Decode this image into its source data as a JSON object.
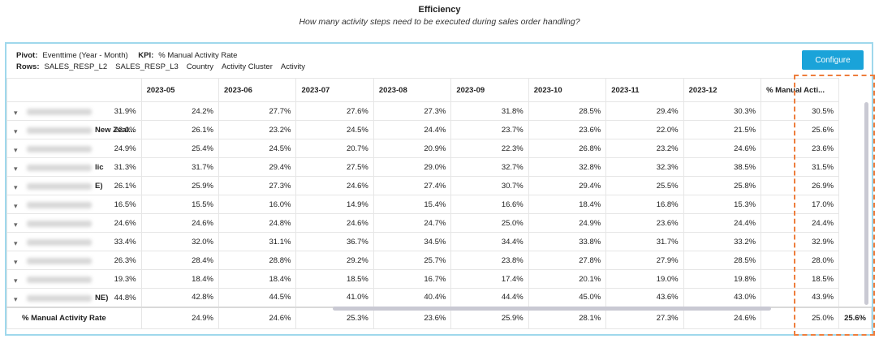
{
  "title": "Efficiency",
  "subtitle": "How many activity steps need to be executed during sales order handling?",
  "pivot": {
    "pivot_label": "Pivot:",
    "pivot_value": "Eventtime (Year - Month)",
    "kpi_label": "KPI:",
    "kpi_value": "% Manual Activity Rate",
    "rows_label": "Rows:",
    "rows_values": [
      "SALES_RESP_L2",
      "SALES_RESP_L3",
      "Country",
      "Activity Cluster",
      "Activity"
    ]
  },
  "configure_label": "Configure",
  "columns": [
    "",
    "2023-05",
    "2023-06",
    "2023-07",
    "2023-08",
    "2023-09",
    "2023-10",
    "2023-11",
    "2023-12",
    "% Manual Acti..."
  ],
  "rows": [
    {
      "label": "",
      "first": "31.9%",
      "values": [
        "24.2%",
        "27.7%",
        "27.6%",
        "27.3%",
        "31.8%",
        "28.5%",
        "29.4%",
        "30.3%",
        "30.5%"
      ]
    },
    {
      "label": "New Zeal...",
      "first": "22.0%",
      "values": [
        "26.1%",
        "23.2%",
        "24.5%",
        "24.4%",
        "23.7%",
        "23.6%",
        "22.0%",
        "21.5%",
        "25.6%"
      ]
    },
    {
      "label": "",
      "first": "24.9%",
      "values": [
        "25.4%",
        "24.5%",
        "20.7%",
        "20.9%",
        "22.3%",
        "26.8%",
        "23.2%",
        "24.6%",
        "23.6%"
      ]
    },
    {
      "label": "lic",
      "first": "31.3%",
      "values": [
        "31.7%",
        "29.4%",
        "27.5%",
        "29.0%",
        "32.7%",
        "32.8%",
        "32.3%",
        "38.5%",
        "31.5%"
      ]
    },
    {
      "label": "E)",
      "first": "26.1%",
      "values": [
        "25.9%",
        "27.3%",
        "24.6%",
        "27.4%",
        "30.7%",
        "29.4%",
        "25.5%",
        "25.8%",
        "26.9%"
      ]
    },
    {
      "label": "",
      "first": "16.5%",
      "values": [
        "15.5%",
        "16.0%",
        "14.9%",
        "15.4%",
        "16.6%",
        "18.4%",
        "16.8%",
        "15.3%",
        "17.0%"
      ]
    },
    {
      "label": "",
      "first": "24.6%",
      "values": [
        "24.6%",
        "24.8%",
        "24.6%",
        "24.7%",
        "25.0%",
        "24.9%",
        "23.6%",
        "24.4%",
        "24.4%"
      ]
    },
    {
      "label": "",
      "first": "33.4%",
      "values": [
        "32.0%",
        "31.1%",
        "36.7%",
        "34.5%",
        "34.4%",
        "33.8%",
        "31.7%",
        "33.2%",
        "32.9%"
      ]
    },
    {
      "label": "",
      "first": "26.3%",
      "values": [
        "28.4%",
        "28.8%",
        "29.2%",
        "25.7%",
        "23.8%",
        "27.8%",
        "27.9%",
        "28.5%",
        "28.0%"
      ]
    },
    {
      "label": "",
      "first": "19.3%",
      "values": [
        "18.4%",
        "18.4%",
        "18.5%",
        "16.7%",
        "17.4%",
        "20.1%",
        "19.0%",
        "19.8%",
        "18.5%"
      ]
    },
    {
      "label": "NE)",
      "first": "44.8%",
      "values": [
        "42.8%",
        "44.5%",
        "41.0%",
        "40.4%",
        "44.4%",
        "45.0%",
        "43.6%",
        "43.0%",
        "43.9%"
      ]
    }
  ],
  "total": {
    "label": "% Manual Activity Rate",
    "values": [
      "24.9%",
      "24.6%",
      "25.3%",
      "23.6%",
      "25.9%",
      "28.1%",
      "27.3%",
      "24.6%",
      "25.0%",
      "25.6%"
    ]
  }
}
